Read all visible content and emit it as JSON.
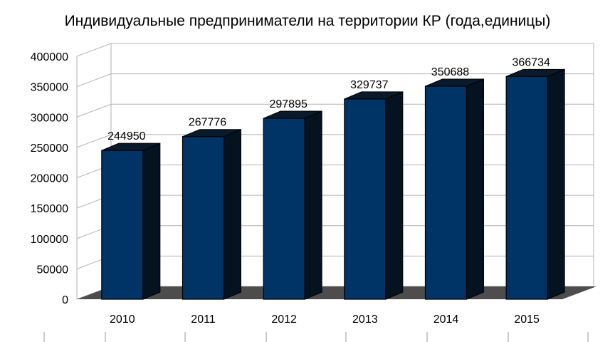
{
  "chart_data": {
    "type": "bar",
    "title": "Индивидуальные предприниматели на территории КР (года,единицы)",
    "categories": [
      "2010",
      "2011",
      "2012",
      "2013",
      "2014",
      "2015"
    ],
    "values": [
      244950,
      267776,
      297895,
      329737,
      350688,
      366734
    ],
    "data_labels": [
      "244950",
      "267776",
      "297895",
      "329737",
      "350688",
      "366734"
    ],
    "y_ticks": [
      "0",
      "50000",
      "100000",
      "150000",
      "200000",
      "250000",
      "300000",
      "350000",
      "400000"
    ],
    "ylim": [
      0,
      400000
    ],
    "xlabel": "",
    "ylabel": "",
    "grid": true,
    "style": "3d-bar",
    "colors": {
      "bar_front": "#003366",
      "bar_top": "#0a1a2a",
      "bar_side": "#05121f",
      "floor": "#4d4d4d",
      "grid": "#b3b3b3"
    }
  }
}
